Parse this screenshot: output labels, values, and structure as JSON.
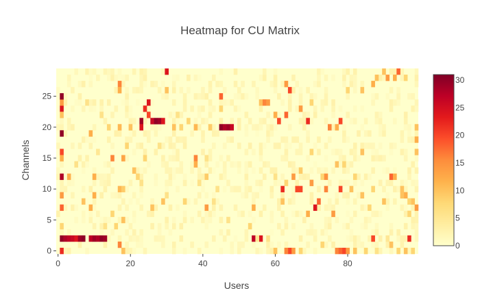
{
  "chart_data": {
    "type": "heatmap",
    "title": "Heatmap for CU Matrix",
    "xlabel": "Users",
    "ylabel": "Channels",
    "xlim": [
      -0.5,
      99.5
    ],
    "ylim": [
      -0.5,
      29.5
    ],
    "x_ticks": [
      0,
      20,
      40,
      60,
      80
    ],
    "y_ticks": [
      0,
      5,
      10,
      15,
      20,
      25
    ],
    "colorscale": [
      "#ffffcc",
      "#ffeda0",
      "#fed976",
      "#feb24c",
      "#fd8d3c",
      "#fc4e2a",
      "#e31a1c",
      "#bd0026",
      "#800026"
    ],
    "zlim": [
      0,
      31
    ],
    "colorbar_ticks": [
      0,
      5,
      10,
      15,
      20,
      25,
      30
    ],
    "grid": false,
    "legend": "colorbar-right",
    "rows": 30,
    "cols": 100,
    "sparse_cells": [
      [
        1,
        2,
        30
      ],
      [
        2,
        2,
        28
      ],
      [
        3,
        2,
        27
      ],
      [
        4,
        2,
        26
      ],
      [
        5,
        2,
        24
      ],
      [
        6,
        2,
        29
      ],
      [
        7,
        2,
        30
      ],
      [
        9,
        2,
        27
      ],
      [
        10,
        2,
        29
      ],
      [
        11,
        2,
        28
      ],
      [
        12,
        2,
        30
      ],
      [
        13,
        2,
        29
      ],
      [
        54,
        2,
        27
      ],
      [
        56,
        2,
        24
      ],
      [
        87,
        2,
        20
      ],
      [
        97,
        2,
        22
      ],
      [
        55,
        2,
        5
      ],
      [
        58,
        2,
        6
      ],
      [
        91,
        2,
        5
      ],
      [
        1,
        0,
        22
      ],
      [
        17,
        1,
        16
      ],
      [
        18,
        0,
        10
      ],
      [
        60,
        0,
        10
      ],
      [
        64,
        0,
        20
      ],
      [
        63,
        0,
        16
      ],
      [
        65,
        0,
        14
      ],
      [
        67,
        0,
        8
      ],
      [
        77,
        0,
        16
      ],
      [
        78,
        0,
        18
      ],
      [
        79,
        0,
        20
      ],
      [
        80,
        0,
        14
      ],
      [
        82,
        0,
        10
      ],
      [
        85,
        0,
        8
      ],
      [
        88,
        0,
        6
      ],
      [
        94,
        0,
        8
      ],
      [
        96,
        0,
        10
      ],
      [
        98,
        0,
        8
      ],
      [
        92,
        1,
        10
      ],
      [
        73,
        1,
        8
      ],
      [
        1,
        4,
        8
      ],
      [
        18,
        5,
        10
      ],
      [
        1,
        7,
        18
      ],
      [
        9,
        7,
        12
      ],
      [
        15,
        6,
        8
      ],
      [
        1,
        9,
        14
      ],
      [
        10,
        9,
        12
      ],
      [
        17,
        10,
        11
      ],
      [
        18,
        10,
        9
      ],
      [
        1,
        12,
        28
      ],
      [
        3,
        12,
        12
      ],
      [
        10,
        12,
        12
      ],
      [
        22,
        12,
        8
      ],
      [
        41,
        12,
        9
      ],
      [
        39,
        11,
        6
      ],
      [
        1,
        16,
        20
      ],
      [
        1,
        15,
        12
      ],
      [
        15,
        15,
        16
      ],
      [
        18,
        15,
        13
      ],
      [
        38,
        15,
        16
      ],
      [
        38,
        14,
        12
      ],
      [
        1,
        19,
        30
      ],
      [
        9,
        19,
        12
      ],
      [
        17,
        20,
        11
      ],
      [
        20,
        20,
        10
      ],
      [
        23,
        21,
        29
      ],
      [
        23,
        20,
        24
      ],
      [
        26,
        21,
        26
      ],
      [
        27,
        21,
        30
      ],
      [
        28,
        21,
        29
      ],
      [
        29,
        21,
        24
      ],
      [
        25,
        22,
        20
      ],
      [
        32,
        20,
        10
      ],
      [
        34,
        20,
        8
      ],
      [
        38,
        20,
        11
      ],
      [
        42,
        20,
        9
      ],
      [
        45,
        20,
        30
      ],
      [
        46,
        20,
        28
      ],
      [
        47,
        20,
        29
      ],
      [
        48,
        20,
        26
      ],
      [
        1,
        23,
        24
      ],
      [
        1,
        24,
        14
      ],
      [
        1,
        22,
        10
      ],
      [
        1,
        25,
        30
      ],
      [
        17,
        27,
        16
      ],
      [
        17,
        26,
        12
      ],
      [
        24,
        23,
        22
      ],
      [
        25,
        24,
        24
      ],
      [
        30,
        26,
        10
      ],
      [
        30,
        29,
        24
      ],
      [
        45,
        25,
        18
      ],
      [
        45,
        23,
        8
      ],
      [
        56,
        24,
        10
      ],
      [
        57,
        24,
        16
      ],
      [
        58,
        24,
        14
      ],
      [
        60,
        22,
        12
      ],
      [
        61,
        21,
        20
      ],
      [
        63,
        22,
        18
      ],
      [
        63,
        27,
        14
      ],
      [
        64,
        26,
        20
      ],
      [
        67,
        23,
        14
      ],
      [
        69,
        21,
        22
      ],
      [
        70,
        24,
        8
      ],
      [
        75,
        20,
        16
      ],
      [
        77,
        20,
        12
      ],
      [
        78,
        21,
        20
      ],
      [
        80,
        26,
        8
      ],
      [
        84,
        26,
        10
      ],
      [
        87,
        27,
        12
      ],
      [
        88,
        28,
        10
      ],
      [
        90,
        29,
        10
      ],
      [
        91,
        28,
        14
      ],
      [
        93,
        28,
        12
      ],
      [
        94,
        29,
        18
      ],
      [
        96,
        28,
        8
      ],
      [
        70,
        16,
        8
      ],
      [
        77,
        14,
        10
      ],
      [
        79,
        14,
        8
      ],
      [
        81,
        10,
        10
      ],
      [
        84,
        16,
        10
      ],
      [
        87,
        10,
        8
      ],
      [
        92,
        12,
        18
      ],
      [
        95,
        10,
        10
      ],
      [
        96,
        9,
        12
      ],
      [
        97,
        6,
        8
      ],
      [
        98,
        8,
        10
      ],
      [
        99,
        16,
        10
      ],
      [
        99,
        18,
        12
      ],
      [
        99,
        20,
        10
      ],
      [
        99,
        7,
        14
      ],
      [
        97,
        8,
        8
      ],
      [
        29,
        8,
        10
      ],
      [
        41,
        7,
        14
      ],
      [
        35,
        8,
        8
      ],
      [
        30,
        9,
        6
      ],
      [
        54,
        7,
        12
      ],
      [
        65,
        12,
        14
      ],
      [
        67,
        10,
        20
      ],
      [
        69,
        6,
        12
      ],
      [
        71,
        7,
        24
      ],
      [
        72,
        8,
        18
      ],
      [
        74,
        10,
        16
      ],
      [
        76,
        6,
        14
      ],
      [
        78,
        10,
        20
      ],
      [
        84,
        9,
        10
      ],
      [
        86,
        7,
        8
      ],
      [
        90,
        8,
        10
      ],
      [
        93,
        12,
        12
      ],
      [
        95,
        9,
        10
      ],
      [
        62,
        8,
        10
      ],
      [
        63,
        11,
        8
      ],
      [
        70,
        11,
        14
      ],
      [
        60,
        12,
        6
      ],
      [
        67,
        13,
        9
      ],
      [
        73,
        12,
        8
      ],
      [
        82,
        12,
        8
      ],
      [
        62,
        10,
        22
      ],
      [
        66,
        10,
        20
      ],
      [
        74,
        12,
        15
      ],
      [
        53,
        4,
        8
      ],
      [
        47,
        5,
        6
      ],
      [
        43,
        8,
        6
      ],
      [
        41,
        15,
        6
      ],
      [
        44,
        10,
        6
      ],
      [
        36,
        21,
        8
      ],
      [
        33,
        22,
        6
      ],
      [
        28,
        17,
        6
      ],
      [
        24,
        15,
        8
      ],
      [
        23,
        11,
        6
      ],
      [
        19,
        17,
        8
      ],
      [
        14,
        20,
        8
      ],
      [
        7,
        8,
        10
      ],
      [
        5,
        14,
        6
      ],
      [
        8,
        24,
        6
      ],
      [
        12,
        22,
        6
      ],
      [
        11,
        16,
        5
      ],
      [
        21,
        13,
        10
      ],
      [
        13,
        4,
        6
      ],
      [
        16,
        4,
        8
      ],
      [
        26,
        7,
        10
      ]
    ]
  }
}
